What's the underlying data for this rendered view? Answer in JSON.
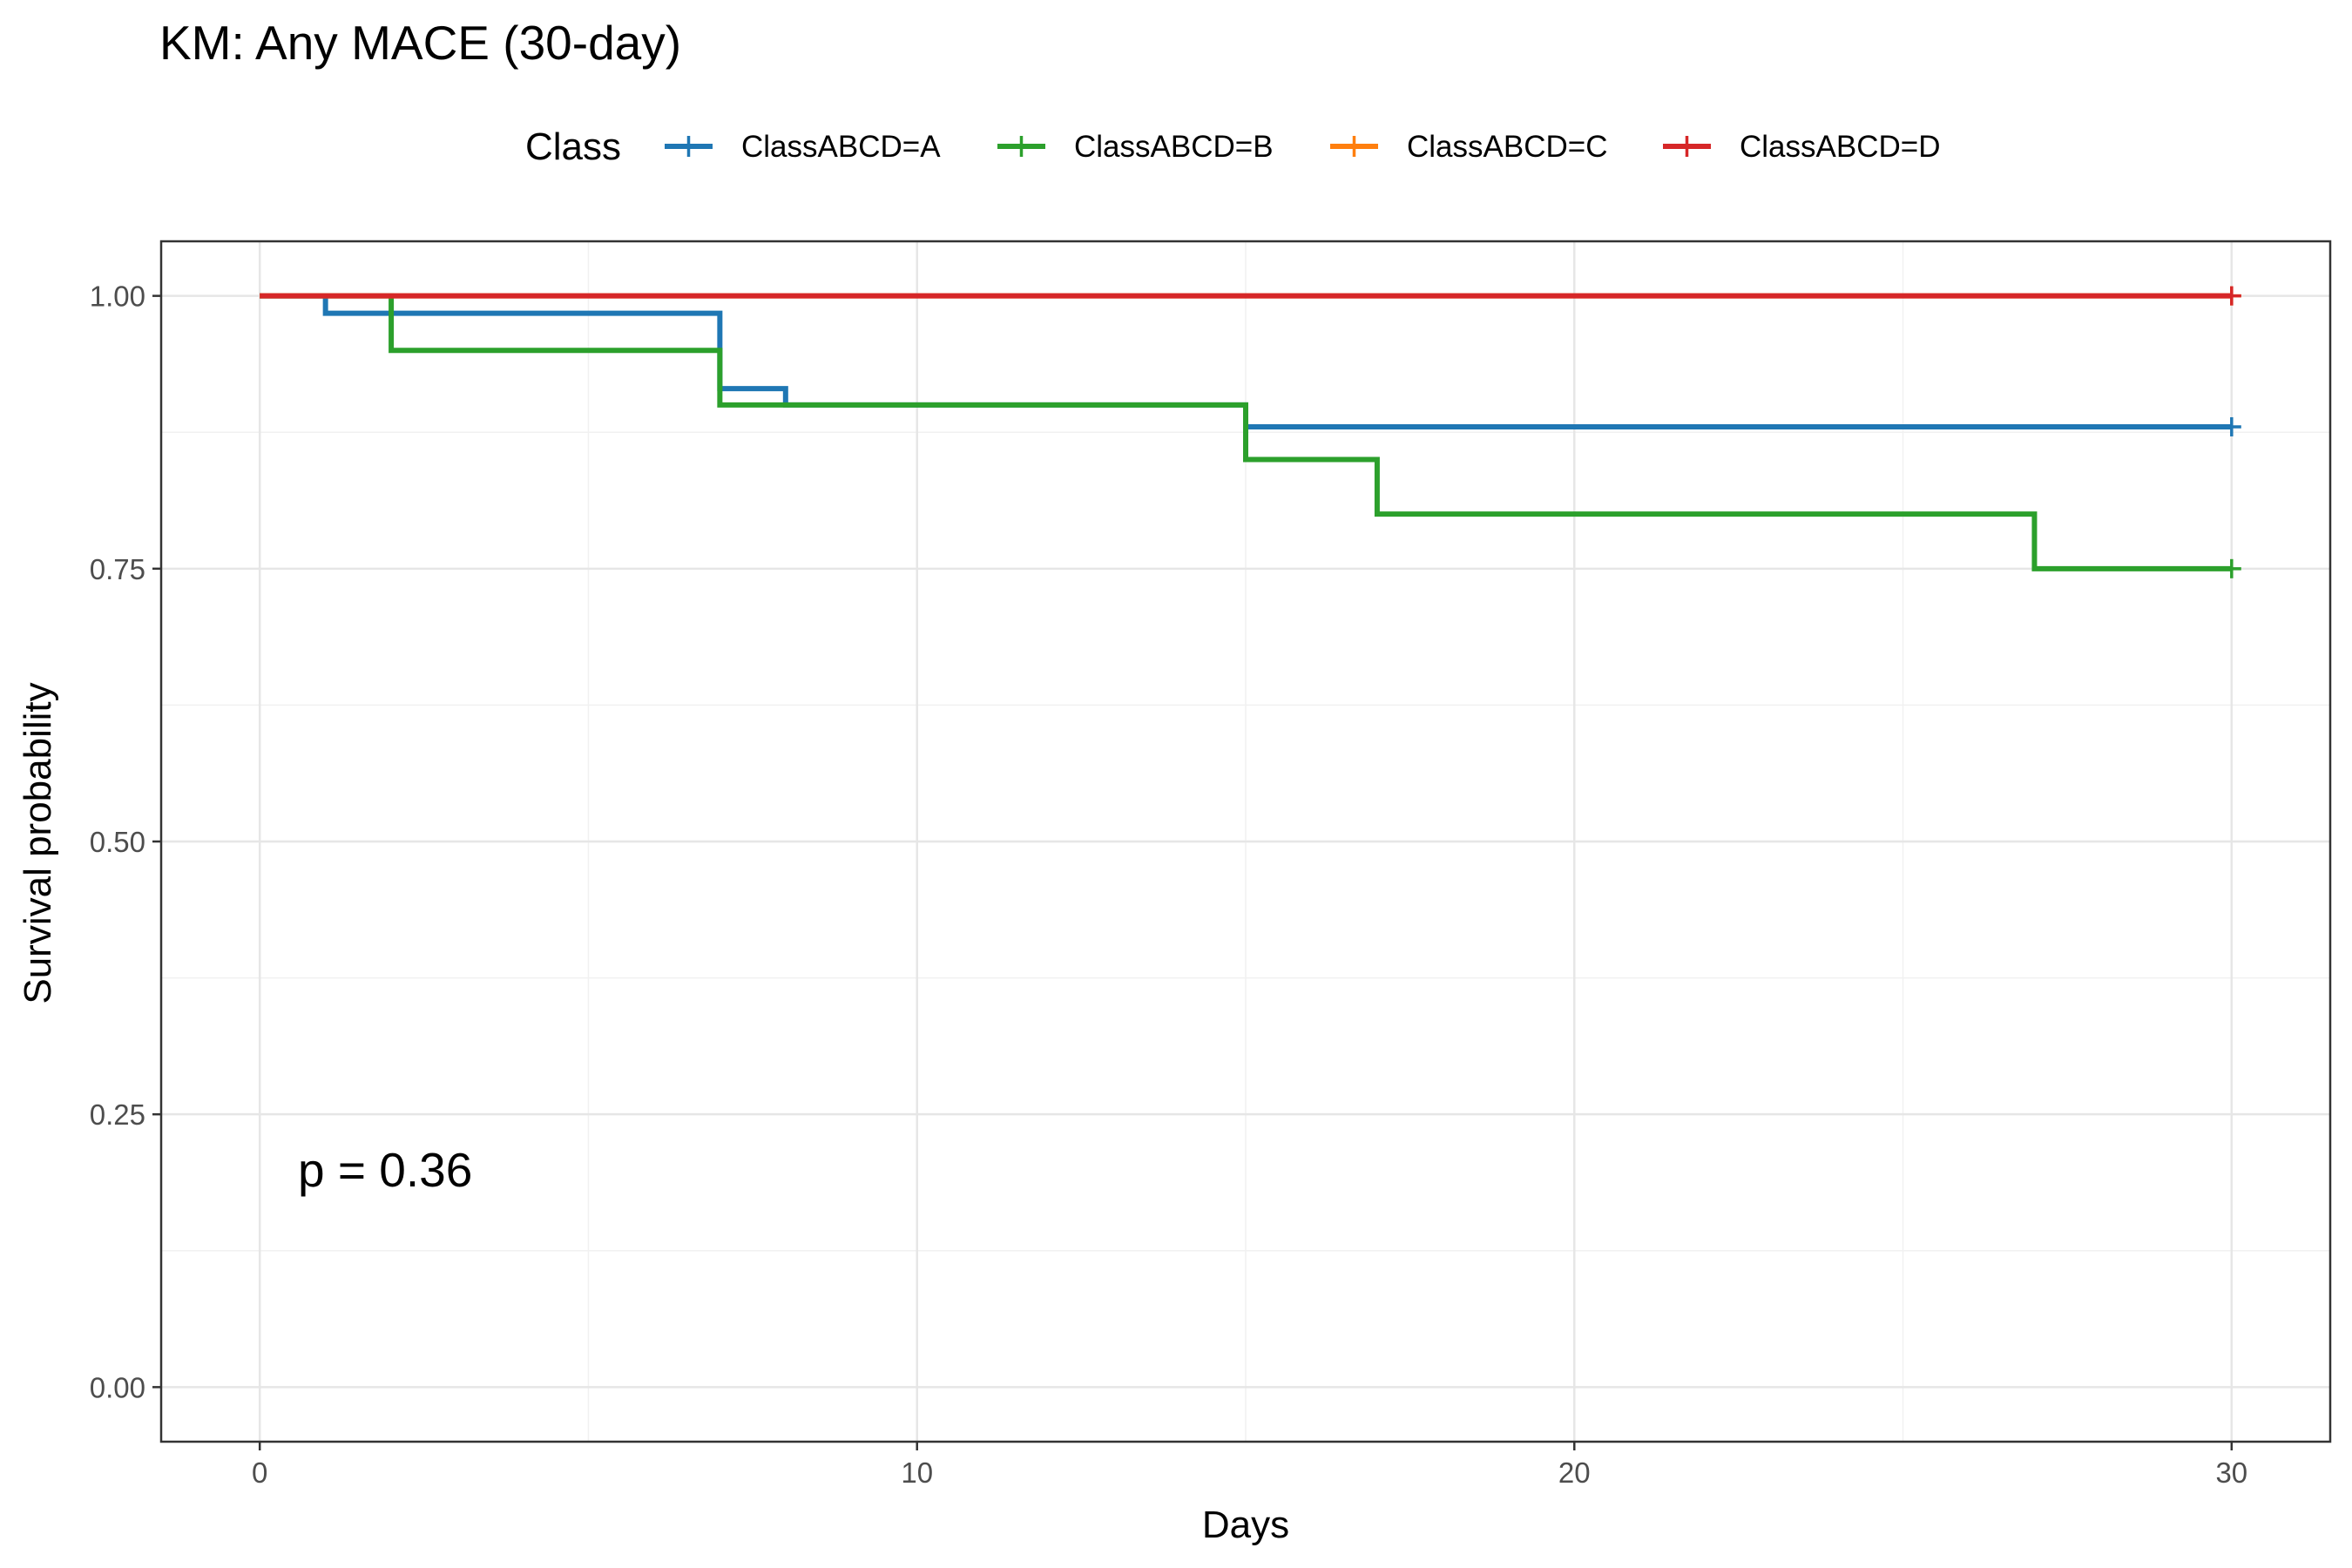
{
  "chart_data": {
    "type": "line",
    "title": "KM: Any MACE (30-day)",
    "xlabel": "Days",
    "ylabel": "Survival probability",
    "xlim": [
      -1.5,
      31.5
    ],
    "ylim": [
      -0.05,
      1.05
    ],
    "x_ticks": [
      0,
      10,
      20,
      30
    ],
    "x_tick_labels": [
      "0",
      "10",
      "20",
      "30"
    ],
    "y_ticks": [
      0,
      0.25,
      0.5,
      0.75,
      1.0
    ],
    "y_tick_labels": [
      "0.00",
      "0.25",
      "0.50",
      "0.75",
      "1.00"
    ],
    "grid": true,
    "legend": {
      "title": "Class",
      "position": "top",
      "entries": [
        "ClassABCD=A",
        "ClassABCD=B",
        "ClassABCD=C",
        "ClassABCD=D"
      ]
    },
    "annotation": "p = 0.36",
    "series": [
      {
        "name": "ClassABCD=A",
        "color": "#1f77b4",
        "step": true,
        "x": [
          0,
          1,
          7,
          8,
          15,
          30
        ],
        "y": [
          1.0,
          0.984,
          0.915,
          0.9,
          0.88,
          0.88
        ],
        "censor": [
          [
            30,
            0.88
          ]
        ]
      },
      {
        "name": "ClassABCD=B",
        "color": "#2ca02c",
        "step": true,
        "x": [
          0,
          2,
          7,
          15,
          17,
          27,
          30
        ],
        "y": [
          1.0,
          0.95,
          0.9,
          0.85,
          0.8,
          0.75,
          0.75
        ],
        "censor": [
          [
            30,
            0.75
          ]
        ]
      },
      {
        "name": "ClassABCD=C",
        "color": "#ff7f0e",
        "step": true,
        "x": [
          0,
          30
        ],
        "y": [
          1.0,
          1.0
        ],
        "censor": [
          [
            30,
            1.0
          ]
        ]
      },
      {
        "name": "ClassABCD=D",
        "color": "#d62728",
        "step": true,
        "x": [
          0,
          30
        ],
        "y": [
          1.0,
          1.0
        ],
        "censor": [
          [
            30,
            1.0
          ]
        ]
      }
    ]
  }
}
